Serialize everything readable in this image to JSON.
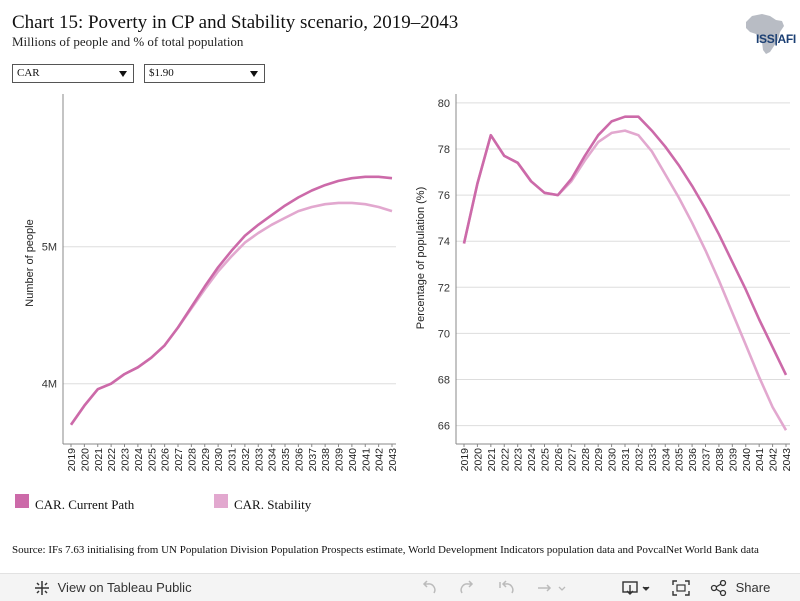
{
  "header": {
    "title": "Chart 15: Poverty in CP and Stability scenario, 2019–2043",
    "subtitle": "Millions of people and % of total population",
    "logo_text": "ISS|AFI"
  },
  "filters": {
    "country": "CAR",
    "poverty_line": "$1.90"
  },
  "colors": {
    "current_path": "#cc6aa9",
    "stability": "#e2a8cf",
    "grid": "#dddddd",
    "axis": "#888888"
  },
  "chart_data": [
    {
      "type": "line",
      "ylabel": "Number of people",
      "y_tick_labels": [
        "4M",
        "5M"
      ],
      "y_ticks": [
        4.0,
        5.0
      ],
      "ylim": [
        3.56,
        6.1
      ],
      "x": [
        "2019",
        "2020",
        "2021",
        "2022",
        "2023",
        "2024",
        "2025",
        "2026",
        "2027",
        "2028",
        "2029",
        "2030",
        "2031",
        "2032",
        "2033",
        "2034",
        "2035",
        "2036",
        "2037",
        "2038",
        "2039",
        "2040",
        "2041",
        "2042",
        "2043"
      ],
      "grid": "horizontal",
      "series": [
        {
          "name": "CAR. Current Path",
          "values": [
            3.7,
            3.84,
            3.96,
            4.0,
            4.07,
            4.12,
            4.19,
            4.28,
            4.41,
            4.56,
            4.71,
            4.85,
            4.97,
            5.08,
            5.16,
            5.23,
            5.3,
            5.36,
            5.41,
            5.45,
            5.48,
            5.5,
            5.51,
            5.51,
            5.5
          ]
        },
        {
          "name": "CAR. Stability",
          "values": [
            3.7,
            3.84,
            3.96,
            4.0,
            4.07,
            4.12,
            4.19,
            4.28,
            4.41,
            4.55,
            4.69,
            4.82,
            4.93,
            5.03,
            5.1,
            5.16,
            5.21,
            5.26,
            5.29,
            5.31,
            5.32,
            5.32,
            5.31,
            5.29,
            5.26
          ]
        }
      ]
    },
    {
      "type": "line",
      "ylabel": "Percentage of population (%)",
      "y_ticks": [
        66,
        68,
        70,
        72,
        74,
        76,
        78,
        80
      ],
      "ylim": [
        65.2,
        80.3
      ],
      "x": [
        "2019",
        "2020",
        "2021",
        "2022",
        "2023",
        "2024",
        "2025",
        "2026",
        "2027",
        "2028",
        "2029",
        "2030",
        "2031",
        "2032",
        "2033",
        "2034",
        "2035",
        "2036",
        "2037",
        "2038",
        "2039",
        "2040",
        "2041",
        "2042",
        "2043"
      ],
      "grid": "horizontal",
      "series": [
        {
          "name": "CAR. Current Path",
          "values": [
            73.9,
            76.5,
            78.6,
            77.7,
            77.4,
            76.6,
            76.1,
            76.0,
            76.7,
            77.7,
            78.6,
            79.2,
            79.4,
            79.4,
            78.8,
            78.1,
            77.3,
            76.4,
            75.4,
            74.3,
            73.1,
            71.9,
            70.6,
            69.4,
            68.2
          ]
        },
        {
          "name": "CAR. Stability",
          "values": [
            73.9,
            76.5,
            78.6,
            77.7,
            77.4,
            76.6,
            76.1,
            76.0,
            76.6,
            77.5,
            78.3,
            78.7,
            78.8,
            78.6,
            77.9,
            76.9,
            75.9,
            74.8,
            73.6,
            72.3,
            70.9,
            69.5,
            68.1,
            66.8,
            65.8
          ]
        }
      ]
    }
  ],
  "legend": [
    {
      "label": "CAR. Current Path",
      "color": "#cc6aa9"
    },
    {
      "label": "CAR. Stability",
      "color": "#e2a8cf"
    }
  ],
  "source": "Source: IFs 7.63 initialising from UN Population Division Population Prospects estimate, World Development Indicators population data and PovcalNet World Bank data",
  "toolbar": {
    "view_label": "View on Tableau Public",
    "share_label": "Share"
  }
}
